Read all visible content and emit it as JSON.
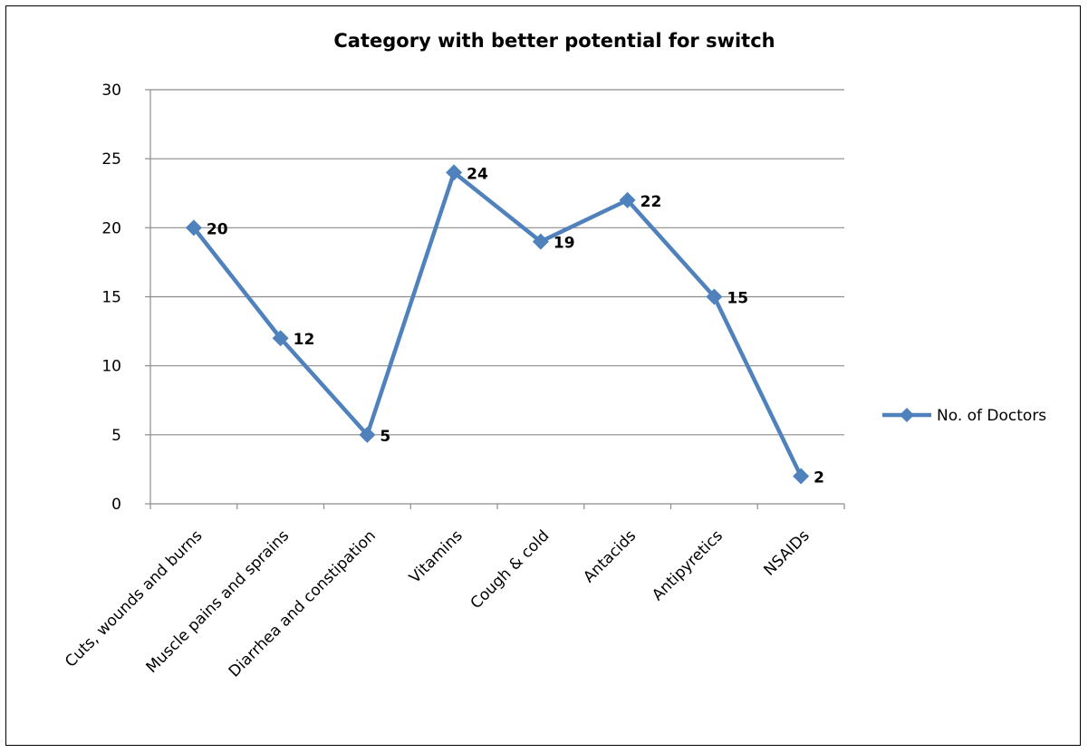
{
  "chart_data": {
    "type": "line",
    "title": "Category with better potential for switch",
    "xlabel": "",
    "ylabel": "",
    "categories": [
      "Cuts, wounds and burns",
      "Muscle pains and sprains",
      "Diarrhea and constipation",
      "Vitamins",
      "Cough & cold",
      "Antacids",
      "Antipyretics",
      "NSAIDs"
    ],
    "series": [
      {
        "name": "No. of Doctors",
        "values": [
          20,
          12,
          5,
          24,
          19,
          22,
          15,
          2
        ],
        "color": "#4F81BD",
        "marker": "diamond"
      }
    ],
    "ylim": [
      0,
      30
    ],
    "yticks": [
      0,
      5,
      10,
      15,
      20,
      25,
      30
    ],
    "grid": true,
    "legend_position": "right",
    "data_labels": true
  }
}
